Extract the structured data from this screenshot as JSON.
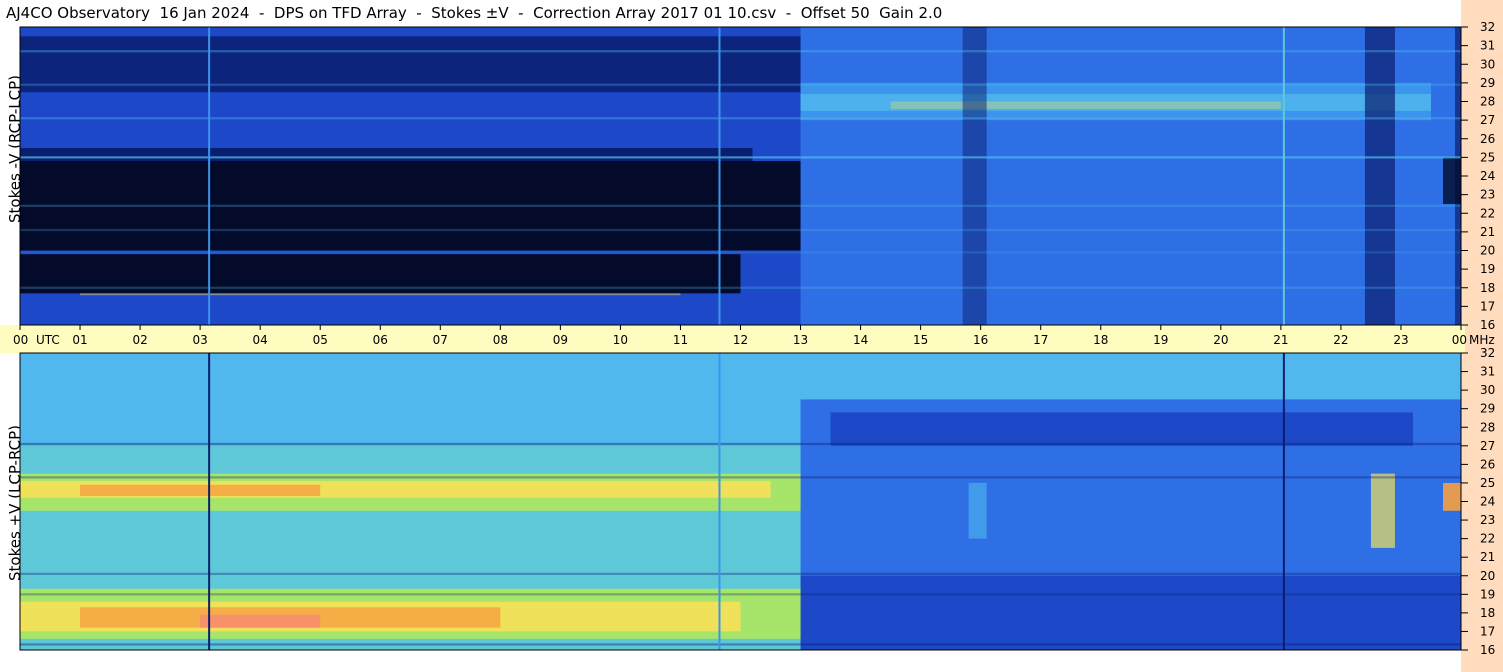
{
  "title": "AJ4CO Observatory  16 Jan 2024  -  DPS on TFD Array  -  Stokes ±V  -  Correction Array 2017 01 10.csv  -  Offset 50  Gain 2.0",
  "colors": {
    "time_axis_band": "#fffcc0",
    "freq_axis_band": "#ffdcbe",
    "border": "#000000"
  },
  "chart_data": [
    {
      "type": "heatmap",
      "name_label": "Stokes -V (RCP-LCP)",
      "ylabel": "Stokes -V (RCP-LCP)",
      "xlabel": "UTC",
      "x_unit": "UTC",
      "y_unit": "MHz",
      "xlim": [
        0,
        24
      ],
      "ylim": [
        16,
        32
      ],
      "colorscale": "jet",
      "description_features": {
        "dark_band_mhz": [
          20,
          25
        ],
        "dark_band_hours": [
          0,
          13
        ],
        "bright_band_mhz": [
          27,
          29
        ],
        "bright_band_hours": [
          13,
          24
        ]
      }
    },
    {
      "type": "heatmap",
      "name_label": "Stokes +V (LCP-RCP)",
      "ylabel": "Stokes +V (LCP-RCP)",
      "xlabel": "UTC",
      "x_unit": "UTC",
      "y_unit": "MHz",
      "xlim": [
        0,
        24
      ],
      "ylim": [
        16,
        32
      ],
      "colorscale": "jet",
      "description_features": {
        "warm_bands_mhz": [
          [
            24,
            25
          ],
          [
            17,
            18
          ]
        ],
        "warm_band_hours": [
          0,
          13
        ]
      }
    }
  ],
  "time_ticks": [
    "00",
    "01",
    "02",
    "03",
    "04",
    "05",
    "06",
    "07",
    "08",
    "09",
    "10",
    "11",
    "12",
    "13",
    "14",
    "15",
    "16",
    "17",
    "18",
    "19",
    "20",
    "21",
    "22",
    "23",
    "00"
  ],
  "time_unit_label": "UTC",
  "freq_ticks": [
    "16",
    "17",
    "18",
    "19",
    "20",
    "21",
    "22",
    "23",
    "24",
    "25",
    "26",
    "27",
    "28",
    "29",
    "30",
    "31",
    "32"
  ],
  "freq_unit_label": "MHz"
}
